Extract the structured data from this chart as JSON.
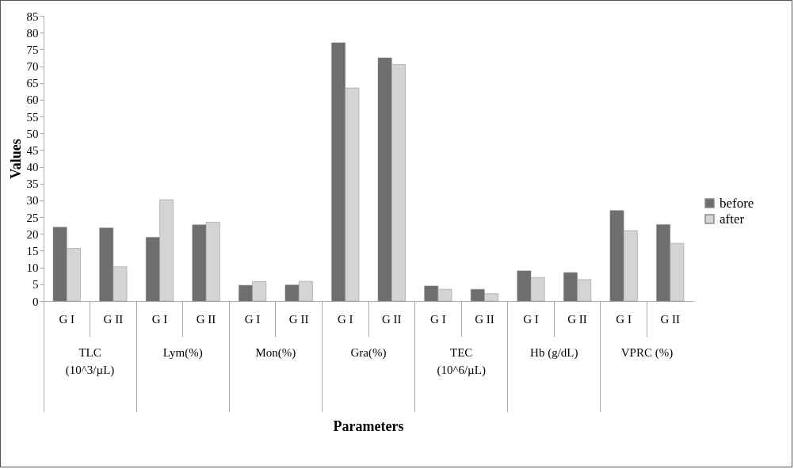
{
  "chart_data": {
    "type": "bar",
    "ylabel": "Values",
    "categories": [
      "G I",
      "G II",
      "G I",
      "G II",
      "G I",
      "G II",
      "G I",
      "G II",
      "G I",
      "G II",
      "G I",
      "G II",
      "G I",
      "G II"
    ],
    "series": [
      {
        "name": "before",
        "color": "#6e6e6e",
        "values": [
          22,
          21.8,
          19,
          22.7,
          4.7,
          4.8,
          77,
          72.5,
          4.5,
          3.5,
          9,
          8.5,
          27,
          22.8
        ]
      },
      {
        "name": "after",
        "color": "#d4d4d4",
        "values": [
          15.7,
          10.2,
          30.2,
          23.5,
          5.8,
          5.9,
          63.5,
          70.5,
          3.5,
          2.2,
          7,
          6.4,
          21,
          17.2
        ]
      }
    ],
    "annotations": [
      "TLC\n(10^3/µL)",
      "Lym(%)",
      "Mon(%)",
      "Gra(%)",
      "TEC\n(10^6/µL)",
      "Hb (g/dL)",
      "VPRC (%)",
      "Parameters"
    ],
    "ylim": [
      0,
      85
    ],
    "yticks": [
      0,
      5,
      10,
      15,
      20,
      25,
      30,
      35,
      40,
      45,
      50,
      55,
      60,
      65,
      70,
      75,
      80,
      85
    ],
    "grid": false,
    "legend": "right"
  }
}
